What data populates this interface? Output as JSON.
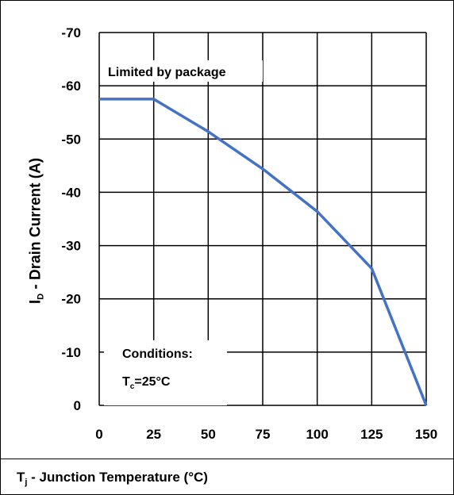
{
  "chart_data": {
    "type": "line",
    "ylabel_main": "I",
    "ylabel_sub": "D",
    "ylabel_rest": " - Drain Current (A)",
    "xlabel_main": "T",
    "xlabel_sub": "j",
    "xlabel_rest": " - Junction Temperature (°C)",
    "xlim": [
      0,
      150
    ],
    "ylim": [
      0,
      -70
    ],
    "x_ticks": [
      0,
      25,
      50,
      75,
      100,
      125,
      150
    ],
    "y_ticks": [
      0,
      -10,
      -20,
      -30,
      -40,
      -50,
      -60,
      -70
    ],
    "grid": true,
    "annotations": {
      "limited": "Limited by package",
      "conditions": "Conditions:",
      "tc_main": "T",
      "tc_sub": "c",
      "tc_rest": "=25°C"
    },
    "series": [
      {
        "color": "#4472C4",
        "x": [
          0,
          25,
          50,
          75,
          100,
          125,
          150
        ],
        "y": [
          -57.5,
          -57.5,
          -51.4,
          -44.4,
          -36.4,
          -25.7,
          0
        ]
      }
    ]
  }
}
